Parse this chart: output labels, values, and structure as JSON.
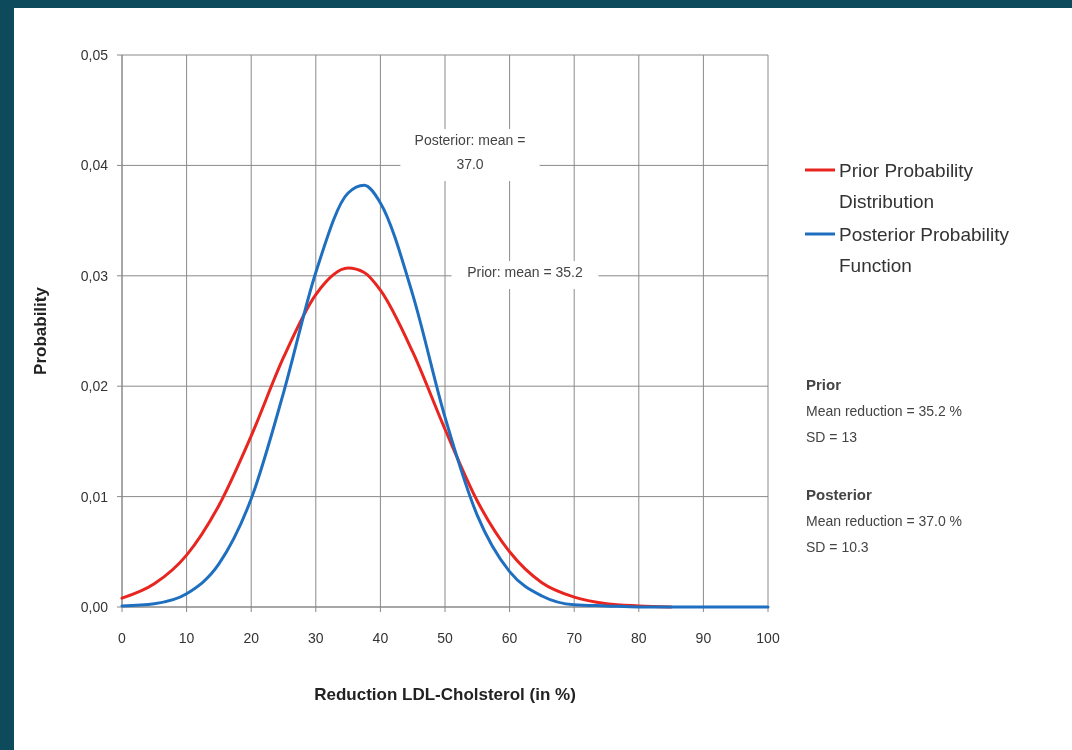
{
  "chart_data": {
    "type": "line",
    "xlabel": "Reduction LDL-Cholsterol (in %)",
    "ylabel": "Probability",
    "x": [
      0,
      5,
      10,
      15,
      20,
      25,
      30,
      35,
      37.5,
      40,
      45,
      50,
      55,
      60,
      65,
      70,
      75,
      80,
      85,
      90,
      95,
      100
    ],
    "series": [
      {
        "name": "Prior Probability Distribution",
        "color": "#e8251f",
        "values": [
          0.0008,
          0.0021,
          0.0047,
          0.0092,
          0.0155,
          0.0226,
          0.0283,
          0.0307,
          0.0303,
          0.0287,
          0.0231,
          0.0161,
          0.0096,
          0.005,
          0.0022,
          0.0009,
          0.0003,
          0.0001,
          0,
          null,
          null,
          null
        ]
      },
      {
        "name": "Posterior Probability Function",
        "color": "#1f6fc0",
        "values": [
          0.0001,
          0.0003,
          0.0012,
          0.0039,
          0.0098,
          0.0194,
          0.0303,
          0.0375,
          0.0382,
          0.0366,
          0.0283,
          0.0172,
          0.0083,
          0.0032,
          0.001,
          0.0002,
          0.0001,
          0,
          0,
          0,
          0,
          0
        ]
      }
    ],
    "xlim": [
      0,
      100
    ],
    "xticks": [
      0,
      10,
      20,
      30,
      40,
      50,
      60,
      70,
      80,
      90,
      100
    ],
    "ylim": [
      0,
      0.05
    ],
    "yticks": [
      {
        "value": 0,
        "label": "0,00"
      },
      {
        "value": 0.01,
        "label": "0,01"
      },
      {
        "value": 0.02,
        "label": "0,02"
      },
      {
        "value": 0.03,
        "label": "0,03"
      },
      {
        "value": 0.04,
        "label": "0,04"
      },
      {
        "value": 0.05,
        "label": "0,05"
      }
    ],
    "grid": true,
    "legend": "right",
    "marker": "none",
    "line_style": "solid",
    "annotations": [
      "Posterior: mean = 37.0",
      "Prior: mean = 35.2",
      "Prior",
      "Mean reduction = 35.2 %",
      "SD = 13",
      "Posterior",
      "Mean reduction = 37.0 %",
      "SD = 10.3"
    ]
  }
}
